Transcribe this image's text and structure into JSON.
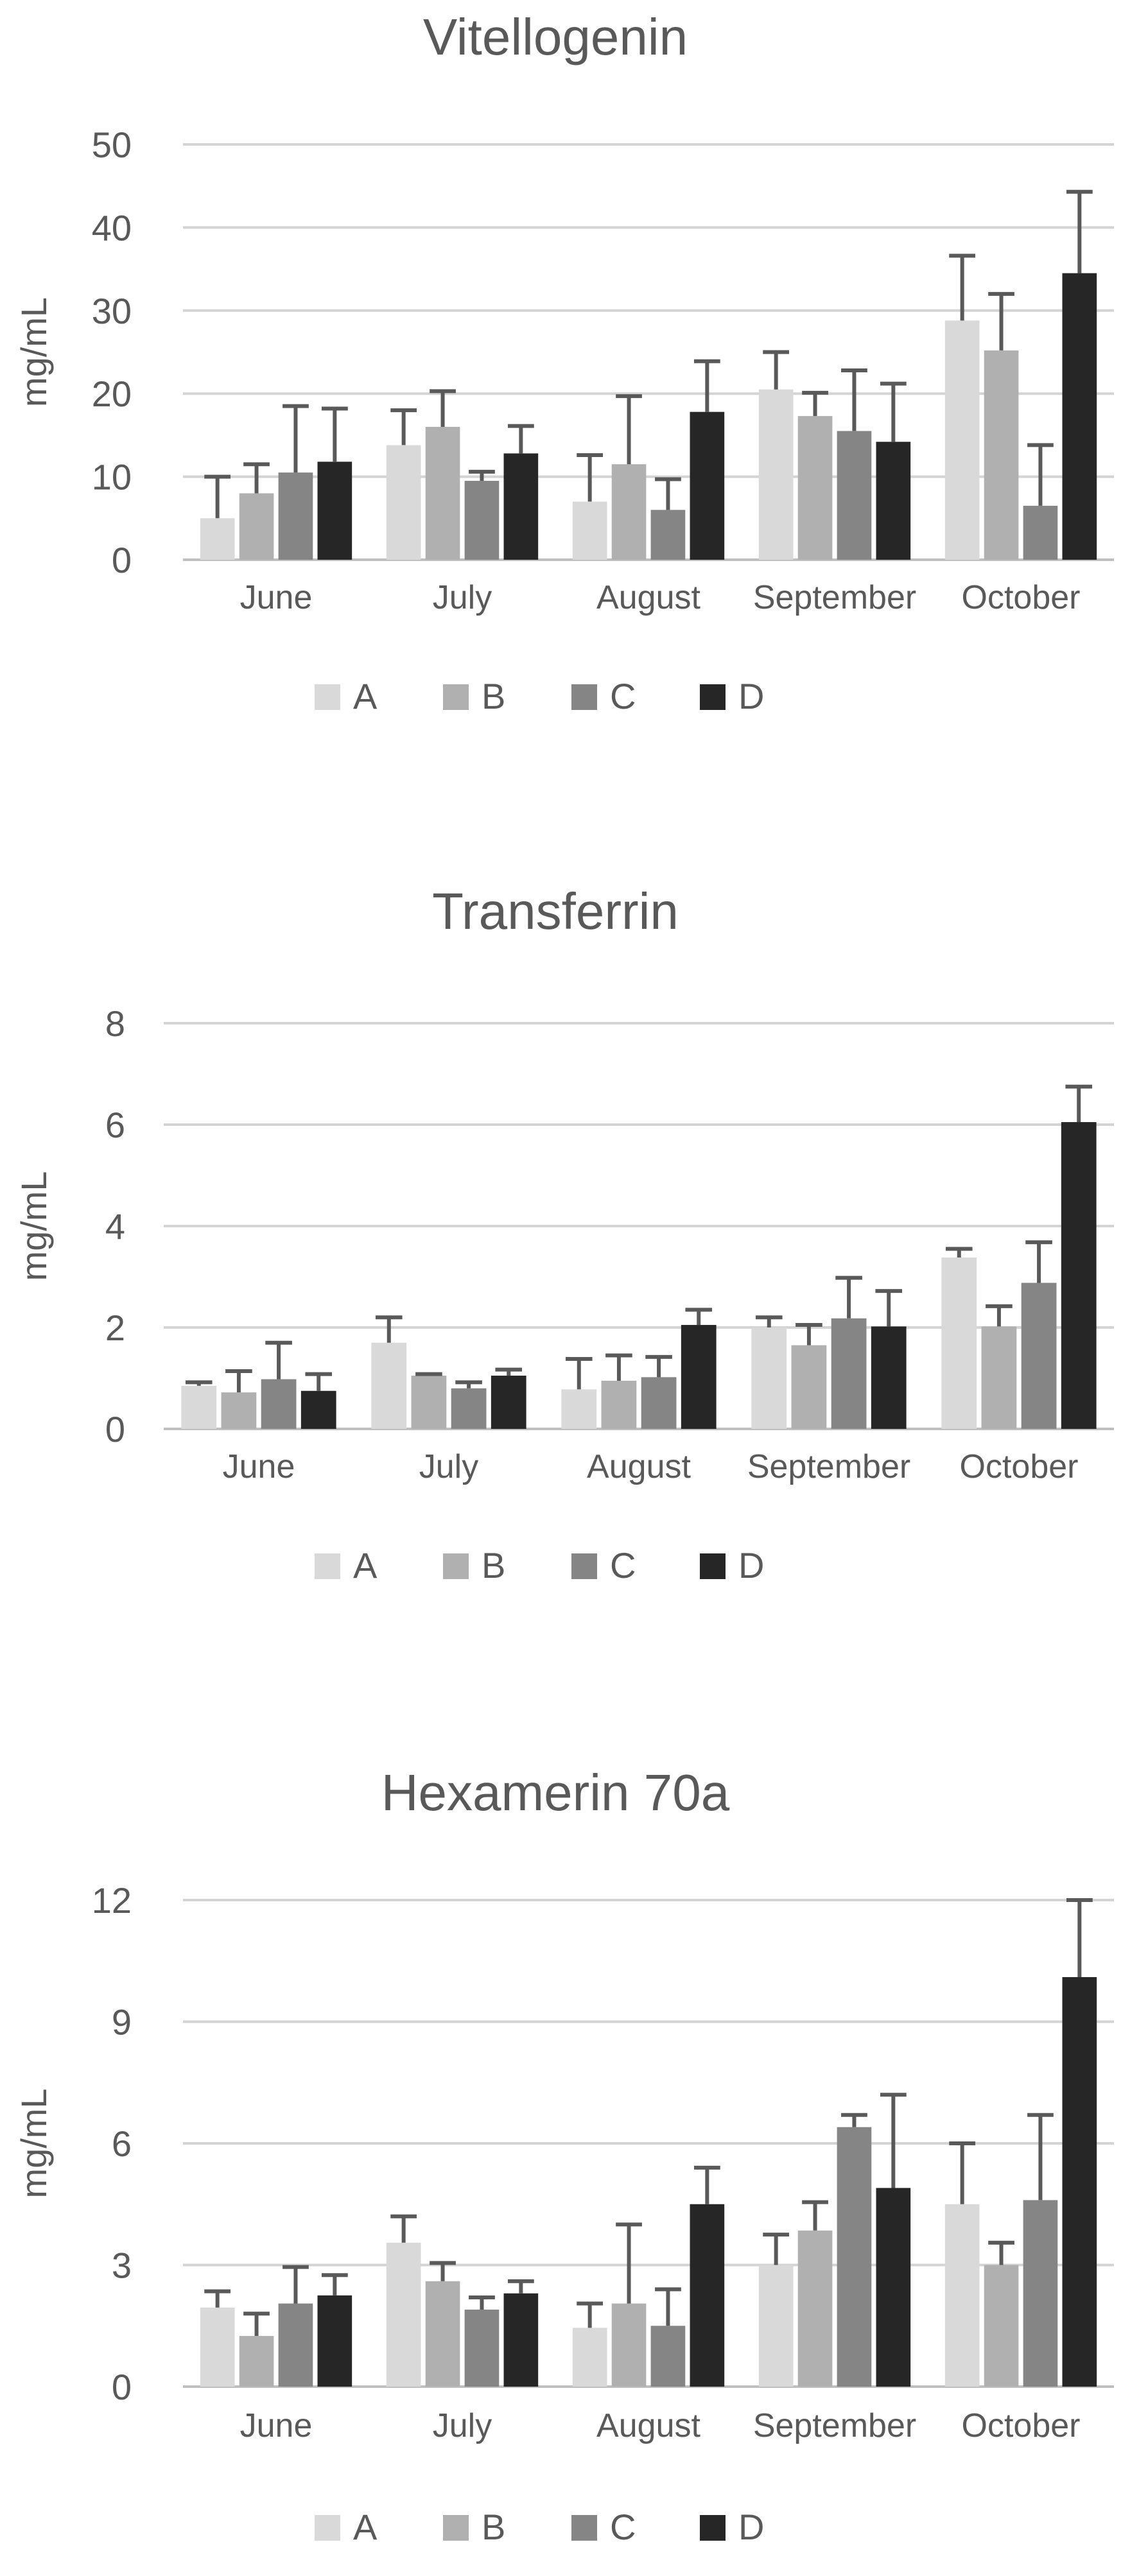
{
  "colors": {
    "A": "#d9d9d9",
    "B": "#b0b0b0",
    "C": "#858585",
    "D": "#262626",
    "error_bar": "#595959",
    "grid": "#d4d4d4",
    "text": "#595959"
  },
  "chart_data": [
    {
      "type": "bar",
      "title": "Vitellogenin",
      "ylabel": "mg/mL",
      "xlabel": "",
      "ylim": [
        0,
        50
      ],
      "yticks": [
        0,
        10,
        20,
        30,
        40,
        50
      ],
      "grid": true,
      "legend_position": "bottom",
      "categories": [
        "June",
        "July",
        "August",
        "September",
        "October"
      ],
      "series": [
        {
          "name": "A",
          "color": "#d9d9d9",
          "values": [
            5,
            13.8,
            7,
            20.5,
            28.8
          ],
          "errors": [
            5,
            4.2,
            5.6,
            4.5,
            7.8
          ]
        },
        {
          "name": "B",
          "color": "#b0b0b0",
          "values": [
            8,
            16,
            11.5,
            17.3,
            25.2
          ],
          "errors": [
            3.5,
            4.3,
            8.2,
            2.8,
            6.8
          ]
        },
        {
          "name": "C",
          "color": "#858585",
          "values": [
            10.5,
            9.5,
            6,
            15.5,
            6.5
          ],
          "errors": [
            8,
            1.1,
            3.7,
            7.3,
            7.3
          ]
        },
        {
          "name": "D",
          "color": "#262626",
          "values": [
            11.8,
            12.8,
            17.8,
            14.2,
            34.5
          ],
          "errors": [
            6.4,
            3.3,
            6.1,
            7,
            9.8
          ]
        }
      ]
    },
    {
      "type": "bar",
      "title": "Transferrin",
      "ylabel": "mg/mL",
      "xlabel": "",
      "ylim": [
        0,
        8
      ],
      "yticks": [
        0,
        2,
        4,
        6,
        8
      ],
      "grid": true,
      "legend_position": "bottom",
      "categories": [
        "June",
        "July",
        "August",
        "September",
        "October"
      ],
      "series": [
        {
          "name": "A",
          "color": "#d9d9d9",
          "values": [
            0.85,
            1.7,
            0.78,
            2.0,
            3.38
          ],
          "errors": [
            0.07,
            0.5,
            0.6,
            0.2,
            0.17
          ]
        },
        {
          "name": "B",
          "color": "#b0b0b0",
          "values": [
            0.72,
            1.05,
            0.95,
            1.65,
            2.02
          ],
          "errors": [
            0.42,
            0.03,
            0.5,
            0.4,
            0.4
          ]
        },
        {
          "name": "C",
          "color": "#858585",
          "values": [
            0.98,
            0.8,
            1.02,
            2.18,
            2.88
          ],
          "errors": [
            0.72,
            0.12,
            0.4,
            0.8,
            0.8
          ]
        },
        {
          "name": "D",
          "color": "#262626",
          "values": [
            0.75,
            1.05,
            2.05,
            2.02,
            6.05
          ],
          "errors": [
            0.33,
            0.12,
            0.3,
            0.7,
            0.7
          ]
        }
      ]
    },
    {
      "type": "bar",
      "title": "Hexamerin 70a",
      "ylabel": "mg/mL",
      "xlabel": "",
      "ylim": [
        0,
        12
      ],
      "yticks": [
        0,
        3,
        6,
        9,
        12
      ],
      "grid": true,
      "legend_position": "bottom",
      "categories": [
        "June",
        "July",
        "August",
        "September",
        "October"
      ],
      "series": [
        {
          "name": "A",
          "color": "#d9d9d9",
          "values": [
            1.95,
            3.55,
            1.45,
            3.0,
            4.5
          ],
          "errors": [
            0.4,
            0.65,
            0.6,
            0.75,
            1.5
          ]
        },
        {
          "name": "B",
          "color": "#b0b0b0",
          "values": [
            1.25,
            2.6,
            2.05,
            3.85,
            3.0
          ],
          "errors": [
            0.55,
            0.45,
            1.95,
            0.7,
            0.55
          ]
        },
        {
          "name": "C",
          "color": "#858585",
          "values": [
            2.05,
            1.9,
            1.5,
            6.4,
            4.6
          ],
          "errors": [
            0.9,
            0.3,
            0.9,
            0.3,
            2.1
          ]
        },
        {
          "name": "D",
          "color": "#262626",
          "values": [
            2.25,
            2.3,
            4.5,
            4.9,
            10.1
          ],
          "errors": [
            0.5,
            0.3,
            0.9,
            2.3,
            1.9
          ]
        }
      ]
    }
  ]
}
